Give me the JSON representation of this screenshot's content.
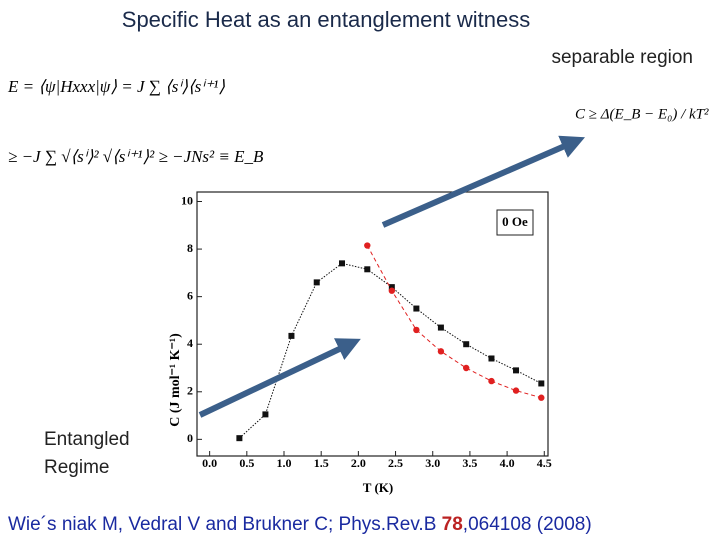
{
  "chart_data": {
    "type": "scatter",
    "title": "Specific Heat as an entanglement witness",
    "equations": [
      "E = ⟨ψ|Hxxx|ψ⟩ = J ∑ ⟨sⁱ⟩⟨sⁱ⁺¹⟩",
      "≥ −J ∑ √⟨sⁱ⟩² √⟨sⁱ⁺¹⟩² ≥ −JNs² ≡ E_B",
      "C ≥ Δ(E_B − E₀) / kT²"
    ],
    "annotations": [
      "separable region",
      "Entangled",
      "Regime"
    ],
    "citation": [
      "Wie´s niak M, Vedral V and Brukner C; Phys.Rev.B ",
      "78",
      ",064108 (2008)"
    ],
    "xlabel": "T (K)",
    "ylabel": "C (J mol⁻¹ K⁻¹)",
    "xlim": [
      -0.17,
      4.55
    ],
    "ylim": [
      -0.7,
      10.4
    ],
    "xticks": [
      {
        "value": 0,
        "label": "0.0"
      },
      0.5,
      {
        "value": 1,
        "label": "1.0"
      },
      1.5,
      {
        "value": 2,
        "label": "2.0"
      },
      2.5,
      {
        "value": 3,
        "label": "3.0"
      },
      3.5,
      {
        "value": 4,
        "label": "4.0"
      },
      4.5
    ],
    "yticks": [
      0,
      2,
      4,
      6,
      8,
      10
    ],
    "series": [
      {
        "name": "0 Oe",
        "color": "#111111",
        "marker": "square",
        "line": "dotted",
        "x": [
          0.4,
          0.75,
          1.1,
          1.44,
          1.78,
          2.12,
          2.45,
          2.78,
          3.11,
          3.45,
          3.79,
          4.12,
          4.46
        ],
        "values": [
          0.05,
          1.05,
          4.35,
          6.6,
          7.4,
          7.15,
          6.4,
          5.5,
          4.7,
          4.0,
          3.4,
          2.9,
          2.35
        ]
      },
      {
        "color": "#e02020",
        "marker": "circle",
        "line": "dashed",
        "x": [
          2.12,
          2.45,
          2.78,
          3.11,
          3.45,
          3.79,
          4.12,
          4.46
        ],
        "values": [
          8.15,
          6.25,
          4.6,
          3.7,
          3.0,
          2.45,
          2.05,
          1.75
        ]
      }
    ]
  }
}
